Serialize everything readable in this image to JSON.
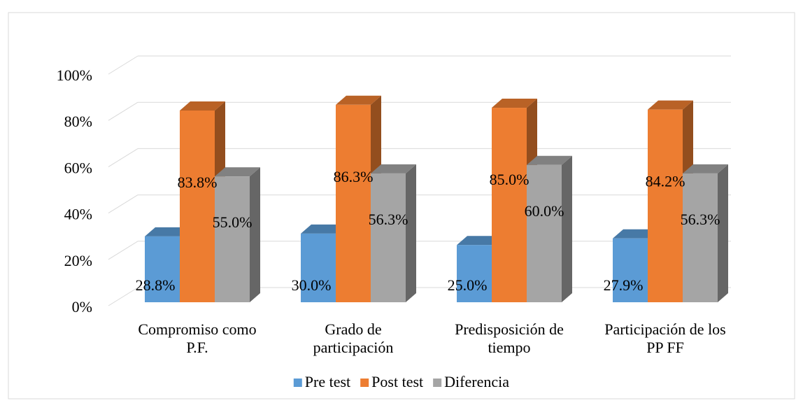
{
  "chart_data": {
    "type": "bar3d",
    "categories": [
      "Compromiso como P.F.",
      "Grado de participación",
      "Predisposición de tiempo",
      "Participación de los PP FF"
    ],
    "series": [
      {
        "name": "Pre test",
        "color": "#5b9bd5",
        "values": [
          28.8,
          30.0,
          25.0,
          27.9
        ],
        "value_labels": [
          "28.8%",
          "30.0%",
          "25.0%",
          "27.9%"
        ]
      },
      {
        "name": "Post test",
        "color": "#ed7d31",
        "values": [
          83.8,
          86.3,
          85.0,
          84.2
        ],
        "value_labels": [
          "83.8%",
          "86.3%",
          "85.0%",
          "84.2%"
        ]
      },
      {
        "name": "Diferencia",
        "color": "#a5a5a5",
        "values": [
          55.0,
          56.3,
          60.0,
          56.3
        ],
        "value_labels": [
          "55.0%",
          "56.3%",
          "60.0%",
          "56.3%"
        ]
      }
    ],
    "ylim": [
      0,
      100
    ],
    "yticks": [
      {
        "value": 0,
        "label": "0%"
      },
      {
        "value": 20,
        "label": "20%"
      },
      {
        "value": 40,
        "label": "40%"
      },
      {
        "value": 60,
        "label": "60%"
      },
      {
        "value": 80,
        "label": "80%"
      },
      {
        "value": 100,
        "label": "100%"
      }
    ],
    "grid": true,
    "legend": "bottom"
  }
}
